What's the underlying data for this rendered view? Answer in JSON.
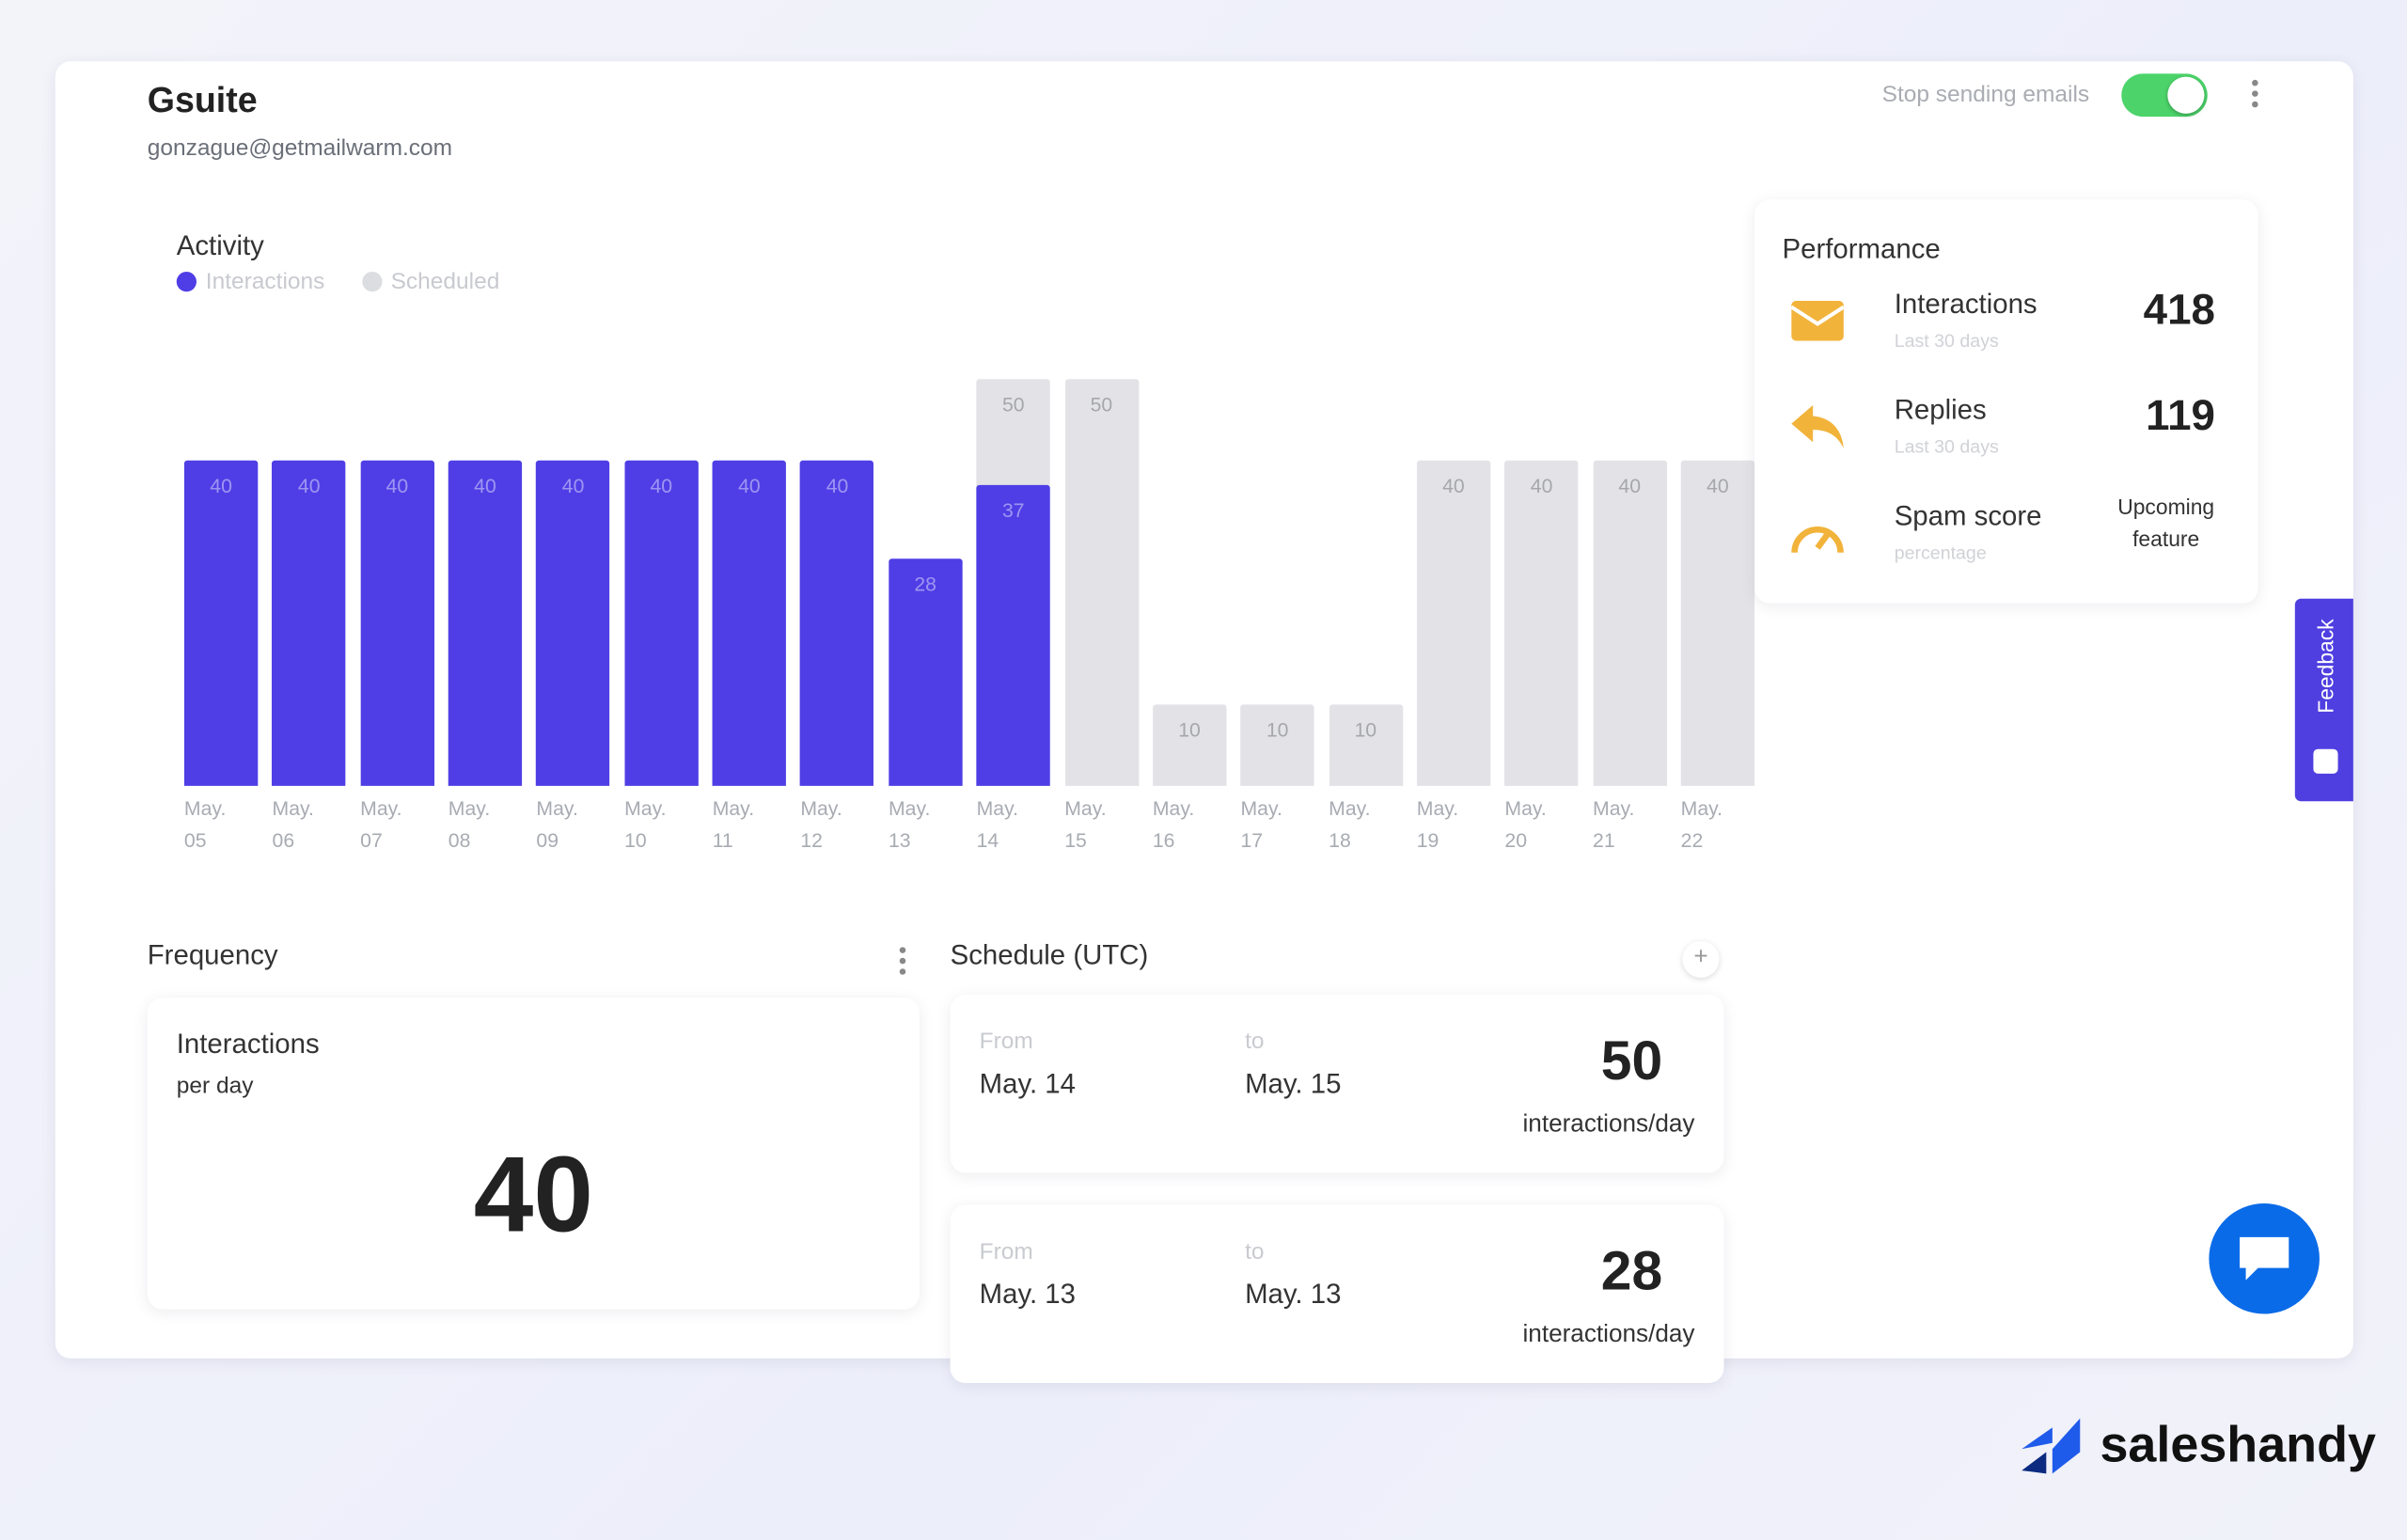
{
  "header": {
    "title": "Gsuite",
    "email": "gonzague@getmailwarm.com",
    "toggle_label": "Stop sending emails"
  },
  "activity": {
    "type": "bar",
    "title": "Activity",
    "categories": [
      "May. 05",
      "May. 06",
      "May. 07",
      "May. 08",
      "May. 09",
      "May. 10",
      "May. 11",
      "May. 12",
      "May. 13",
      "May. 14",
      "May. 15",
      "May. 16",
      "May. 17",
      "May. 18",
      "May. 19",
      "May. 20",
      "May. 21",
      "May. 22"
    ],
    "series": [
      {
        "name": "Interactions",
        "color": "#4f3ee6",
        "values": [
          40,
          40,
          40,
          40,
          40,
          40,
          40,
          40,
          28,
          37,
          null,
          null,
          null,
          null,
          null,
          null,
          null,
          null
        ]
      },
      {
        "name": "Scheduled",
        "color": "#e3e3e7",
        "values": [
          null,
          null,
          null,
          null,
          null,
          null,
          null,
          null,
          null,
          50,
          50,
          10,
          10,
          10,
          40,
          40,
          40,
          40
        ]
      }
    ]
  },
  "performance": {
    "title": "Performance",
    "items": [
      {
        "label": "Interactions",
        "sublabel": "Last 30 days",
        "value": 418
      },
      {
        "label": "Replies",
        "sublabel": "Last 30 days",
        "value": 119
      },
      {
        "label": "Spam score",
        "sublabel": "percentage",
        "value": "Upcoming feature"
      }
    ]
  },
  "frequency": {
    "title": "Frequency",
    "label": "Interactions",
    "sublabel": "per day",
    "value": 40
  },
  "schedule": {
    "title": "Schedule (UTC)",
    "rows": [
      {
        "from_label": "From",
        "from": "May. 14",
        "to_label": "to",
        "to": "May. 15",
        "value": 50,
        "unit": "interactions/day"
      },
      {
        "from_label": "From",
        "from": "May. 13",
        "to_label": "to",
        "to": "May. 13",
        "value": 28,
        "unit": "interactions/day"
      }
    ]
  },
  "feedback": "Feedback",
  "brand": "saleshandy"
}
